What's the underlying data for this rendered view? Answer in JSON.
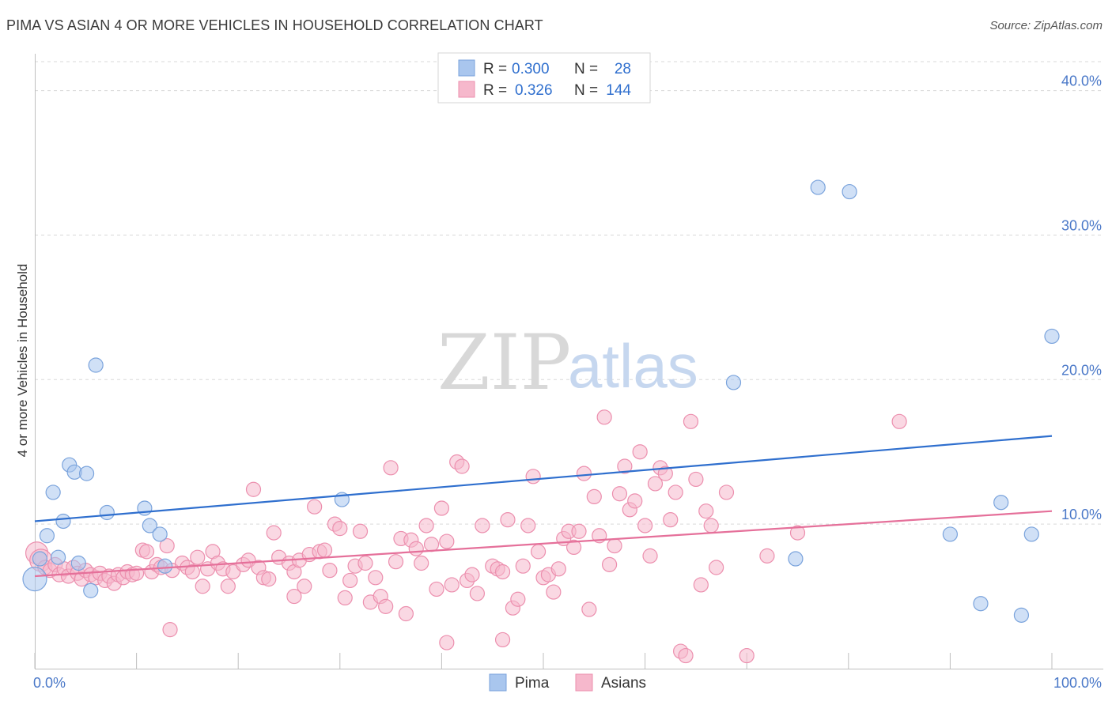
{
  "title": "PIMA VS ASIAN 4 OR MORE VEHICLES IN HOUSEHOLD CORRELATION CHART",
  "source": "Source: ZipAtlas.com",
  "watermark": {
    "zip": "ZIP",
    "atlas": "atlas"
  },
  "colors": {
    "pima_fill": "#a9c6ee",
    "pima_stroke": "#7aa3dc",
    "pima_line": "#2f6fce",
    "asian_fill": "#f6b8cc",
    "asian_stroke": "#ec8fae",
    "asian_line": "#e5709a",
    "grid": "#d9d9d9",
    "tick_text": "#4a78c8"
  },
  "legend_box": {
    "rows": [
      {
        "r_label": "R =",
        "r_value": "0.300",
        "n_label": "N =",
        "n_value": "28"
      },
      {
        "r_label": "R =",
        "r_value": "0.326",
        "n_label": "N =",
        "n_value": "144"
      }
    ]
  },
  "bottom_legend": [
    "Pima",
    "Asians"
  ],
  "chart_data": {
    "type": "scatter",
    "title": "PIMA VS ASIAN 4 OR MORE VEHICLES IN HOUSEHOLD CORRELATION CHART",
    "xlabel": "",
    "ylabel": "4 or more Vehicles in Household",
    "xlim": [
      0,
      100
    ],
    "ylim": [
      0,
      42
    ],
    "x_tick_labels": [
      "0.0%",
      "100.0%"
    ],
    "y_ticks": [
      10,
      20,
      30,
      40
    ],
    "y_tick_labels": [
      "10.0%",
      "20.0%",
      "30.0%",
      "40.0%"
    ],
    "grid": "horizontal dashed",
    "legend_placement": "bottom-center",
    "series": [
      {
        "name": "Pima",
        "r": 0.3,
        "n": 28,
        "trend": {
          "x": [
            0,
            100
          ],
          "y": [
            10.2,
            16.1
          ]
        },
        "points": [
          [
            0,
            6.2
          ],
          [
            0.5,
            7.6
          ],
          [
            1.2,
            9.2
          ],
          [
            1.8,
            12.2
          ],
          [
            2.3,
            7.7
          ],
          [
            2.8,
            10.2
          ],
          [
            3.4,
            14.1
          ],
          [
            3.9,
            13.6
          ],
          [
            4.3,
            7.3
          ],
          [
            5.1,
            13.5
          ],
          [
            5.5,
            5.4
          ],
          [
            6.0,
            21.0
          ],
          [
            7.1,
            10.8
          ],
          [
            10.8,
            11.1
          ],
          [
            11.3,
            9.9
          ],
          [
            12.3,
            9.3
          ],
          [
            12.8,
            7.1
          ],
          [
            30.2,
            11.7
          ],
          [
            68.7,
            19.8
          ],
          [
            74.8,
            7.6
          ],
          [
            77.0,
            33.3
          ],
          [
            80.1,
            33.0
          ],
          [
            90.0,
            9.3
          ],
          [
            93.0,
            4.5
          ],
          [
            95.0,
            11.5
          ],
          [
            97.0,
            3.7
          ],
          [
            98.0,
            9.3
          ],
          [
            100.0,
            23.0
          ]
        ]
      },
      {
        "name": "Asians",
        "r": 0.326,
        "n": 144,
        "trend": {
          "x": [
            0,
            100
          ],
          "y": [
            6.4,
            10.9
          ]
        },
        "points": [
          [
            0.2,
            8.0
          ],
          [
            0.6,
            7.5
          ],
          [
            1.0,
            7.0
          ],
          [
            1.5,
            6.8
          ],
          [
            2.0,
            7.2
          ],
          [
            2.4,
            6.5
          ],
          [
            2.9,
            6.9
          ],
          [
            3.3,
            6.4
          ],
          [
            3.8,
            7.0
          ],
          [
            4.2,
            6.6
          ],
          [
            4.6,
            6.2
          ],
          [
            5.0,
            6.8
          ],
          [
            5.5,
            6.5
          ],
          [
            6.0,
            6.3
          ],
          [
            6.4,
            6.6
          ],
          [
            6.9,
            6.1
          ],
          [
            7.3,
            6.4
          ],
          [
            7.8,
            5.9
          ],
          [
            8.2,
            6.5
          ],
          [
            8.7,
            6.3
          ],
          [
            9.1,
            6.7
          ],
          [
            9.6,
            6.5
          ],
          [
            10.0,
            6.6
          ],
          [
            10.6,
            8.2
          ],
          [
            11.0,
            8.1
          ],
          [
            11.5,
            6.7
          ],
          [
            12.0,
            7.2
          ],
          [
            12.4,
            7.0
          ],
          [
            13.0,
            8.5
          ],
          [
            13.5,
            6.8
          ],
          [
            14.5,
            7.3
          ],
          [
            15.0,
            7.0
          ],
          [
            15.5,
            6.7
          ],
          [
            16.0,
            7.7
          ],
          [
            16.5,
            5.7
          ],
          [
            17.0,
            6.9
          ],
          [
            17.5,
            8.1
          ],
          [
            18.0,
            7.3
          ],
          [
            18.5,
            6.9
          ],
          [
            19.0,
            5.7
          ],
          [
            19.5,
            6.7
          ],
          [
            20.5,
            7.2
          ],
          [
            21.0,
            7.5
          ],
          [
            21.5,
            12.4
          ],
          [
            22.0,
            7.0
          ],
          [
            22.5,
            6.3
          ],
          [
            23.0,
            6.2
          ],
          [
            23.5,
            9.4
          ],
          [
            24.0,
            7.7
          ],
          [
            25.0,
            7.3
          ],
          [
            25.5,
            6.7
          ],
          [
            26.0,
            7.5
          ],
          [
            26.5,
            5.7
          ],
          [
            27.0,
            7.9
          ],
          [
            27.5,
            11.2
          ],
          [
            28.0,
            8.1
          ],
          [
            28.5,
            8.2
          ],
          [
            29.0,
            6.8
          ],
          [
            29.5,
            10.0
          ],
          [
            30.0,
            9.7
          ],
          [
            30.5,
            4.9
          ],
          [
            31.0,
            6.1
          ],
          [
            31.5,
            7.1
          ],
          [
            32.0,
            9.5
          ],
          [
            32.5,
            7.3
          ],
          [
            33.0,
            4.6
          ],
          [
            33.5,
            6.3
          ],
          [
            34.0,
            5.0
          ],
          [
            34.5,
            4.3
          ],
          [
            35.0,
            13.9
          ],
          [
            35.5,
            7.4
          ],
          [
            36.0,
            9.0
          ],
          [
            36.5,
            3.8
          ],
          [
            37.0,
            8.9
          ],
          [
            37.5,
            8.3
          ],
          [
            38.0,
            7.3
          ],
          [
            38.5,
            9.9
          ],
          [
            39.0,
            8.6
          ],
          [
            39.5,
            5.5
          ],
          [
            40.0,
            11.1
          ],
          [
            40.5,
            8.8
          ],
          [
            41.0,
            5.8
          ],
          [
            41.5,
            14.3
          ],
          [
            42.0,
            14.0
          ],
          [
            42.5,
            6.1
          ],
          [
            43.0,
            6.5
          ],
          [
            43.5,
            5.2
          ],
          [
            44.0,
            9.9
          ],
          [
            45.0,
            7.1
          ],
          [
            45.5,
            6.9
          ],
          [
            46.0,
            6.7
          ],
          [
            46.5,
            10.3
          ],
          [
            47.0,
            4.2
          ],
          [
            47.5,
            4.8
          ],
          [
            48.0,
            7.1
          ],
          [
            48.5,
            9.9
          ],
          [
            49.0,
            13.3
          ],
          [
            49.5,
            8.1
          ],
          [
            50.0,
            6.3
          ],
          [
            50.5,
            6.5
          ],
          [
            51.0,
            5.3
          ],
          [
            51.5,
            6.9
          ],
          [
            52.0,
            9.0
          ],
          [
            52.5,
            9.5
          ],
          [
            53.0,
            8.4
          ],
          [
            53.5,
            9.5
          ],
          [
            54.0,
            13.5
          ],
          [
            54.5,
            4.1
          ],
          [
            55.0,
            11.9
          ],
          [
            55.5,
            9.2
          ],
          [
            56.0,
            17.4
          ],
          [
            56.5,
            7.2
          ],
          [
            57.0,
            8.5
          ],
          [
            57.5,
            12.1
          ],
          [
            58.0,
            14.0
          ],
          [
            58.5,
            11.0
          ],
          [
            59.0,
            11.6
          ],
          [
            59.5,
            15.0
          ],
          [
            60.0,
            9.9
          ],
          [
            60.5,
            7.8
          ],
          [
            61.0,
            12.8
          ],
          [
            61.5,
            13.9
          ],
          [
            62.0,
            13.5
          ],
          [
            62.5,
            10.3
          ],
          [
            63.0,
            12.2
          ],
          [
            63.5,
            1.2
          ],
          [
            64.0,
            0.9
          ],
          [
            64.5,
            17.1
          ],
          [
            65.0,
            13.1
          ],
          [
            65.5,
            5.8
          ],
          [
            66.0,
            10.9
          ],
          [
            66.5,
            9.9
          ],
          [
            67.0,
            7.0
          ],
          [
            68.0,
            12.2
          ],
          [
            70.0,
            0.9
          ],
          [
            72.0,
            7.8
          ],
          [
            75.0,
            9.4
          ],
          [
            85.0,
            17.1
          ],
          [
            25.5,
            5.0
          ],
          [
            13.3,
            2.7
          ],
          [
            40.5,
            1.8
          ],
          [
            46.0,
            2.0
          ]
        ]
      }
    ]
  }
}
